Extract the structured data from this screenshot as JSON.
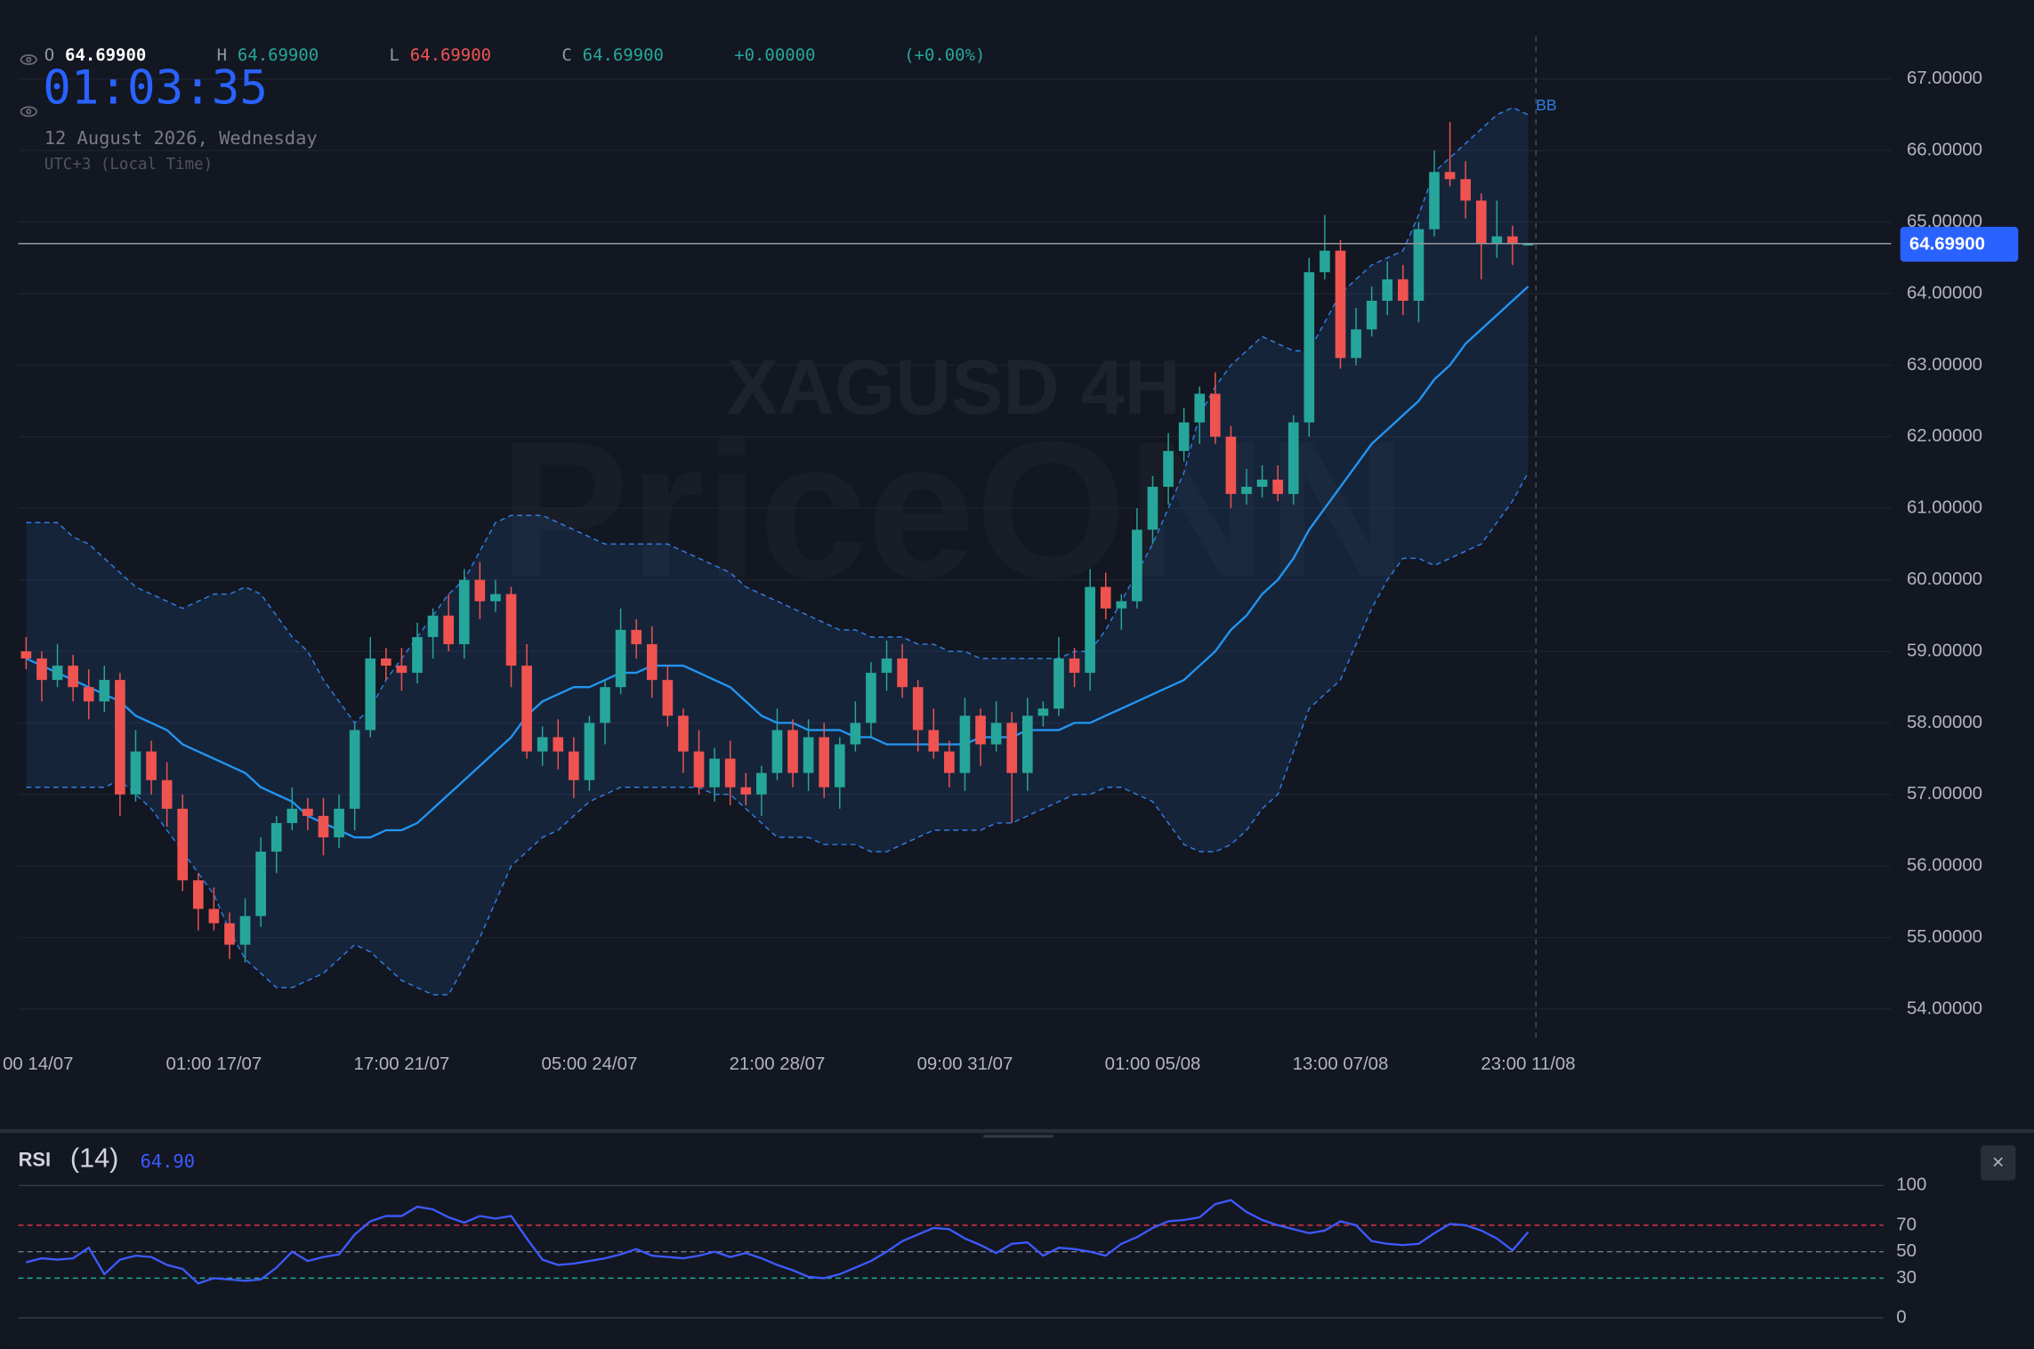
{
  "header": {
    "open_label": "O",
    "open": "64.69900",
    "high_label": "H",
    "high": "64.69900",
    "low_label": "L",
    "low": "64.69900",
    "close_label": "C",
    "close": "64.69900",
    "change": "+0.00000",
    "change_pct": "(+0.00%)",
    "clock": "01:03:35",
    "date": "12 August 2026, Wednesday",
    "timezone": "UTC+3 (Local Time)"
  },
  "watermark": {
    "symbol": "XAGUSD 4H",
    "brand": "PriceONN"
  },
  "close_button": "×",
  "chart_data": [
    {
      "type": "candlestick",
      "up_color": "#26a69a",
      "down_color": "#ef5350",
      "xlim": [
        -0.5,
        119.2
      ],
      "xticks": [
        {
          "value": 0,
          "label": "00 14/07"
        },
        {
          "value": 12,
          "label": "01:00 17/07"
        },
        {
          "value": 24,
          "label": "17:00 21/07"
        },
        {
          "value": 36,
          "label": "05:00 24/07"
        },
        {
          "value": 48,
          "label": "21:00 28/07"
        },
        {
          "value": 60,
          "label": "09:00 31/07"
        },
        {
          "value": 72,
          "label": "01:00 05/08"
        },
        {
          "value": 84,
          "label": "13:00 07/08"
        },
        {
          "value": 96,
          "label": "23:00 11/08"
        }
      ],
      "ylim": [
        53.6,
        67.56
      ],
      "yticks": [
        {
          "value": 54,
          "label": "54.00000"
        },
        {
          "value": 55,
          "label": "55.00000"
        },
        {
          "value": 56,
          "label": "56.00000"
        },
        {
          "value": 57,
          "label": "57.00000"
        },
        {
          "value": 58,
          "label": "58.00000"
        },
        {
          "value": 59,
          "label": "59.00000"
        },
        {
          "value": 60,
          "label": "60.00000"
        },
        {
          "value": 61,
          "label": "61.00000"
        },
        {
          "value": 62,
          "label": "62.00000"
        },
        {
          "value": 63,
          "label": "63.00000"
        },
        {
          "value": 64,
          "label": "64.00000"
        },
        {
          "value": 65,
          "label": "65.00000"
        },
        {
          "value": 66,
          "label": "66.00000"
        },
        {
          "value": 67,
          "label": "67.00000"
        }
      ],
      "grid": true,
      "open": [
        59.0,
        58.9,
        58.6,
        58.8,
        58.5,
        58.3,
        58.6,
        57.0,
        57.6,
        57.2,
        56.8,
        55.8,
        55.4,
        55.2,
        54.9,
        55.3,
        56.2,
        56.6,
        56.8,
        56.7,
        56.4,
        56.8,
        57.9,
        58.9,
        58.8,
        58.7,
        59.2,
        59.5,
        59.1,
        60.0,
        59.7,
        59.8,
        58.8,
        57.6,
        57.8,
        57.6,
        57.2,
        58.0,
        58.5,
        59.3,
        59.1,
        58.6,
        58.1,
        57.6,
        57.1,
        57.5,
        57.1,
        57.0,
        57.3,
        57.9,
        57.3,
        57.8,
        57.1,
        57.7,
        58.0,
        58.7,
        58.9,
        58.5,
        57.9,
        57.6,
        57.3,
        58.1,
        57.7,
        58.0,
        57.3,
        58.1,
        58.2,
        58.9,
        58.7,
        59.9,
        59.6,
        59.7,
        60.7,
        61.3,
        61.8,
        62.2,
        62.6,
        62.0,
        61.2,
        61.3,
        61.4,
        61.2,
        62.2,
        64.3,
        64.6,
        63.1,
        63.5,
        63.9,
        64.2,
        63.9,
        64.9,
        65.7,
        65.6,
        65.3,
        64.7,
        64.8,
        64.699
      ],
      "high": [
        59.2,
        59.0,
        59.1,
        58.95,
        58.75,
        58.8,
        58.7,
        57.9,
        57.75,
        57.45,
        57.0,
        55.9,
        55.7,
        55.35,
        55.55,
        56.4,
        56.7,
        57.1,
        56.95,
        56.95,
        57.0,
        58.0,
        59.2,
        59.05,
        59.05,
        59.4,
        59.6,
        59.8,
        60.15,
        60.25,
        60.0,
        59.9,
        59.1,
        57.95,
        58.05,
        57.8,
        58.1,
        58.6,
        59.6,
        59.45,
        59.35,
        58.8,
        58.2,
        57.9,
        57.65,
        57.75,
        57.3,
        57.4,
        58.2,
        58.05,
        58.05,
        58.0,
        57.8,
        58.3,
        58.85,
        59.15,
        59.1,
        58.6,
        58.2,
        57.75,
        58.35,
        58.2,
        58.3,
        58.15,
        58.35,
        58.3,
        59.2,
        59.05,
        60.15,
        60.1,
        59.8,
        61.0,
        61.45,
        62.05,
        62.4,
        62.7,
        62.9,
        62.15,
        61.55,
        61.6,
        61.6,
        62.3,
        64.5,
        65.1,
        64.75,
        63.8,
        64.1,
        64.45,
        64.4,
        65.0,
        66.0,
        66.4,
        65.85,
        65.4,
        65.3,
        64.95,
        64.699
      ],
      "low": [
        58.75,
        58.3,
        58.5,
        58.3,
        58.05,
        58.15,
        56.7,
        56.9,
        57.0,
        56.55,
        55.65,
        55.1,
        55.1,
        54.7,
        54.65,
        55.15,
        55.9,
        56.5,
        56.5,
        56.15,
        56.25,
        56.5,
        57.8,
        58.6,
        58.45,
        58.55,
        58.9,
        59.0,
        58.9,
        59.45,
        59.55,
        58.5,
        57.5,
        57.4,
        57.35,
        56.95,
        57.05,
        57.7,
        58.4,
        58.9,
        58.35,
        57.95,
        57.3,
        57.0,
        56.9,
        56.85,
        56.85,
        56.7,
        57.2,
        57.1,
        57.05,
        56.95,
        56.8,
        57.6,
        57.8,
        58.45,
        58.35,
        57.6,
        57.5,
        57.1,
        57.05,
        57.4,
        57.6,
        56.6,
        57.05,
        57.95,
        58.1,
        58.5,
        58.45,
        59.45,
        59.3,
        59.6,
        60.5,
        61.05,
        61.65,
        61.9,
        61.9,
        61.0,
        61.05,
        61.15,
        61.1,
        61.05,
        62.0,
        64.2,
        62.95,
        63.0,
        63.4,
        63.7,
        63.7,
        63.6,
        64.8,
        65.5,
        65.05,
        64.2,
        64.5,
        64.4,
        64.699
      ],
      "close": [
        58.9,
        58.6,
        58.8,
        58.5,
        58.3,
        58.6,
        57.0,
        57.6,
        57.2,
        56.8,
        55.8,
        55.4,
        55.2,
        54.9,
        55.3,
        56.2,
        56.6,
        56.8,
        56.7,
        56.4,
        56.8,
        57.9,
        58.9,
        58.8,
        58.7,
        59.2,
        59.5,
        59.1,
        60.0,
        59.7,
        59.8,
        58.8,
        57.6,
        57.8,
        57.6,
        57.2,
        58.0,
        58.5,
        59.3,
        59.1,
        58.6,
        58.1,
        57.6,
        57.1,
        57.5,
        57.1,
        57.0,
        57.3,
        57.9,
        57.3,
        57.8,
        57.1,
        57.7,
        58.0,
        58.7,
        58.9,
        58.5,
        57.9,
        57.6,
        57.3,
        58.1,
        57.7,
        58.0,
        57.3,
        58.1,
        58.2,
        58.9,
        58.7,
        59.9,
        59.6,
        59.7,
        60.7,
        61.3,
        61.8,
        62.2,
        62.6,
        62.0,
        61.2,
        61.3,
        61.4,
        61.2,
        62.2,
        64.3,
        64.6,
        63.1,
        63.5,
        63.9,
        64.2,
        63.9,
        64.9,
        65.7,
        65.6,
        65.3,
        64.7,
        64.8,
        64.7,
        64.699
      ],
      "bb_label": "BB",
      "bb_color": "#2f7de1",
      "bb_basis_color": "#2196f3",
      "bb_upper": [
        60.8,
        60.8,
        60.8,
        60.6,
        60.5,
        60.3,
        60.1,
        59.9,
        59.8,
        59.7,
        59.6,
        59.7,
        59.8,
        59.8,
        59.9,
        59.8,
        59.5,
        59.2,
        59.0,
        58.6,
        58.3,
        58.0,
        58.2,
        58.6,
        58.9,
        59.2,
        59.5,
        59.8,
        60.0,
        60.4,
        60.8,
        60.9,
        60.9,
        60.9,
        60.8,
        60.7,
        60.6,
        60.5,
        60.5,
        60.5,
        60.5,
        60.5,
        60.4,
        60.3,
        60.2,
        60.1,
        59.9,
        59.8,
        59.7,
        59.6,
        59.5,
        59.4,
        59.3,
        59.3,
        59.2,
        59.2,
        59.2,
        59.1,
        59.1,
        59.0,
        59.0,
        58.9,
        58.9,
        58.9,
        58.9,
        58.9,
        58.9,
        59.0,
        59.0,
        59.3,
        59.7,
        60.1,
        60.5,
        61.0,
        61.5,
        62.3,
        62.7,
        63.0,
        63.2,
        63.4,
        63.3,
        63.2,
        63.2,
        63.6,
        64.0,
        64.2,
        64.4,
        64.5,
        64.6,
        65.1,
        65.7,
        65.9,
        66.1,
        66.3,
        66.5,
        66.6,
        66.5
      ],
      "bb_basis": [
        58.9,
        58.8,
        58.7,
        58.6,
        58.5,
        58.4,
        58.3,
        58.1,
        58.0,
        57.9,
        57.7,
        57.6,
        57.5,
        57.4,
        57.3,
        57.1,
        57.0,
        56.9,
        56.7,
        56.6,
        56.5,
        56.4,
        56.4,
        56.5,
        56.5,
        56.6,
        56.8,
        57.0,
        57.2,
        57.4,
        57.6,
        57.8,
        58.1,
        58.3,
        58.4,
        58.5,
        58.5,
        58.6,
        58.7,
        58.7,
        58.8,
        58.8,
        58.8,
        58.7,
        58.6,
        58.5,
        58.3,
        58.1,
        58.0,
        58.0,
        57.9,
        57.9,
        57.9,
        57.8,
        57.8,
        57.7,
        57.7,
        57.7,
        57.7,
        57.7,
        57.7,
        57.8,
        57.8,
        57.8,
        57.9,
        57.9,
        57.9,
        58.0,
        58.0,
        58.1,
        58.2,
        58.3,
        58.4,
        58.5,
        58.6,
        58.8,
        59.0,
        59.3,
        59.5,
        59.8,
        60.0,
        60.3,
        60.7,
        61.0,
        61.3,
        61.6,
        61.9,
        62.1,
        62.3,
        62.5,
        62.8,
        63.0,
        63.3,
        63.5,
        63.7,
        63.9,
        64.1
      ],
      "bb_lower": [
        57.1,
        57.1,
        57.1,
        57.1,
        57.1,
        57.1,
        57.2,
        57.0,
        56.8,
        56.5,
        56.2,
        55.9,
        55.6,
        55.1,
        54.7,
        54.5,
        54.3,
        54.3,
        54.4,
        54.5,
        54.7,
        54.9,
        54.8,
        54.6,
        54.4,
        54.3,
        54.2,
        54.2,
        54.6,
        55.0,
        55.5,
        56.0,
        56.2,
        56.4,
        56.5,
        56.7,
        56.9,
        57.0,
        57.1,
        57.1,
        57.1,
        57.1,
        57.1,
        57.1,
        57.0,
        57.0,
        56.8,
        56.6,
        56.4,
        56.4,
        56.4,
        56.3,
        56.3,
        56.3,
        56.2,
        56.2,
        56.3,
        56.4,
        56.5,
        56.5,
        56.5,
        56.5,
        56.6,
        56.6,
        56.7,
        56.8,
        56.9,
        57.0,
        57.0,
        57.1,
        57.1,
        57.0,
        56.9,
        56.6,
        56.3,
        56.2,
        56.2,
        56.3,
        56.5,
        56.8,
        57.0,
        57.6,
        58.2,
        58.4,
        58.6,
        59.1,
        59.6,
        60.0,
        60.3,
        60.3,
        60.2,
        60.3,
        60.4,
        60.5,
        60.8,
        61.1,
        61.5
      ],
      "last_price": 64.699,
      "last_price_label": "64.69900",
      "last_price_color": "#2962ff"
    },
    {
      "type": "line",
      "title": "RSI",
      "length_label": "(14)",
      "last_label": "64.90",
      "color": "#3d5afe",
      "xlim": [
        -0.5,
        119.2
      ],
      "ylim": [
        0,
        100
      ],
      "yticks": [
        100,
        70,
        50,
        30,
        0
      ],
      "tick_line_colors": [
        "#363a45",
        "#f23645",
        "#787b86",
        "#22ab94",
        "#363a45"
      ],
      "tick_line_dashed": [
        false,
        true,
        true,
        true,
        false
      ],
      "values": [
        42,
        45,
        44,
        45,
        53,
        33,
        44,
        47,
        46,
        40,
        37,
        26,
        30,
        29,
        28,
        29,
        38,
        50,
        43,
        46,
        48,
        63,
        73,
        77,
        77,
        84,
        82,
        76,
        72,
        77,
        75,
        77,
        60,
        44,
        40,
        41,
        43,
        45,
        48,
        52,
        47,
        46,
        45,
        47,
        50,
        46,
        49,
        45,
        40,
        36,
        31,
        30,
        33,
        38,
        43,
        50,
        58,
        63,
        68,
        67,
        60,
        55,
        49,
        56,
        57,
        47,
        53,
        52,
        50,
        47,
        56,
        61,
        68,
        73,
        74,
        76,
        86,
        89,
        80,
        74,
        70,
        67,
        64,
        66,
        73,
        70,
        58,
        56,
        55,
        56,
        64,
        71,
        70,
        66,
        60,
        51,
        64.9
      ]
    }
  ]
}
